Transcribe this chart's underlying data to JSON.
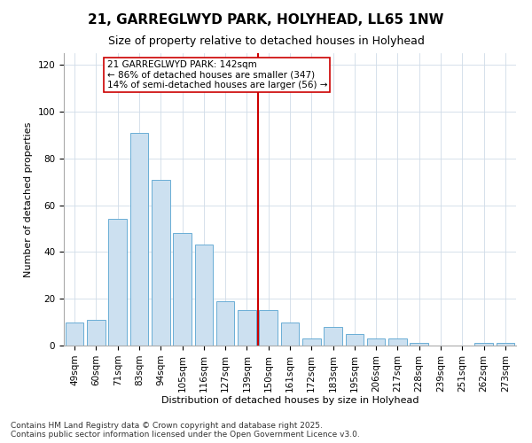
{
  "title": "21, GARREGLWYD PARK, HOLYHEAD, LL65 1NW",
  "subtitle": "Size of property relative to detached houses in Holyhead",
  "xlabel": "Distribution of detached houses by size in Holyhead",
  "ylabel": "Number of detached properties",
  "categories": [
    "49sqm",
    "60sqm",
    "71sqm",
    "83sqm",
    "94sqm",
    "105sqm",
    "116sqm",
    "127sqm",
    "139sqm",
    "150sqm",
    "161sqm",
    "172sqm",
    "183sqm",
    "195sqm",
    "206sqm",
    "217sqm",
    "228sqm",
    "239sqm",
    "251sqm",
    "262sqm",
    "273sqm"
  ],
  "values": [
    10,
    11,
    54,
    91,
    71,
    48,
    43,
    19,
    15,
    15,
    10,
    3,
    8,
    5,
    3,
    3,
    1,
    0,
    0,
    1,
    1
  ],
  "bar_color": "#cce0f0",
  "bar_edge_color": "#6aadd5",
  "vline_x": 8.5,
  "vline_color": "#cc0000",
  "annotation_title": "21 GARREGLWYD PARK: 142sqm",
  "annotation_line1": "← 86% of detached houses are smaller (347)",
  "annotation_line2": "14% of semi-detached houses are larger (56) →",
  "annotation_box_color": "#cc0000",
  "annotation_bg_color": "#ffffff",
  "ylim": [
    0,
    125
  ],
  "yticks": [
    0,
    20,
    40,
    60,
    80,
    100,
    120
  ],
  "footer": "Contains HM Land Registry data © Crown copyright and database right 2025.\nContains public sector information licensed under the Open Government Licence v3.0.",
  "bg_color": "#ffffff",
  "plot_bg_color": "#ffffff",
  "title_fontsize": 11,
  "subtitle_fontsize": 9,
  "axis_label_fontsize": 8,
  "tick_fontsize": 7.5,
  "annotation_fontsize": 7.5,
  "footer_fontsize": 6.5
}
